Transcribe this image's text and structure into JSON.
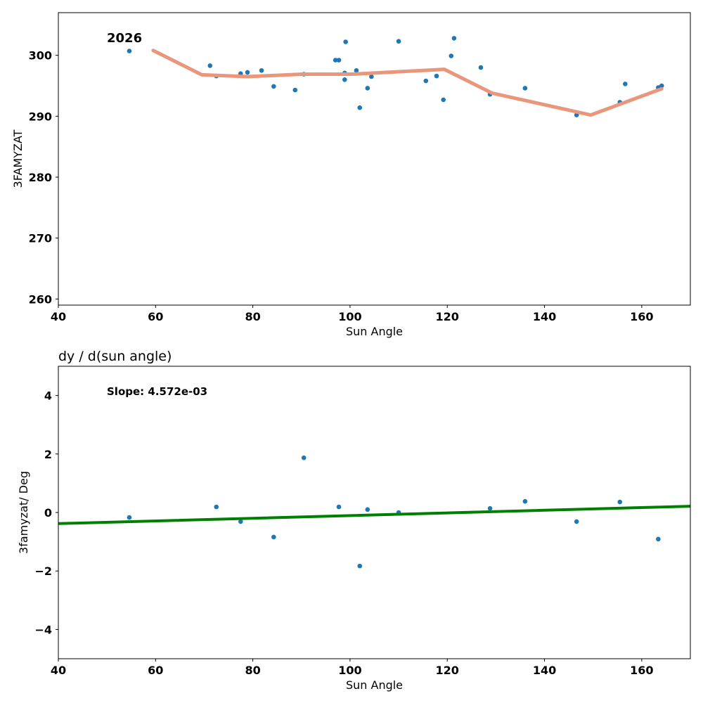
{
  "chart_data": [
    {
      "type": "scatter+line",
      "title": "",
      "annotation": "2026",
      "xlabel": "Sun Angle",
      "ylabel": "3FAMYZAT",
      "xlim": [
        40,
        170
      ],
      "ylim": [
        259,
        307
      ],
      "xticks": [
        40,
        60,
        80,
        100,
        120,
        140,
        160
      ],
      "yticks": [
        260,
        270,
        280,
        290,
        300
      ],
      "points": {
        "x": [
          54.6,
          71.2,
          72.5,
          77.5,
          78.9,
          81.8,
          84.3,
          88.7,
          90.5,
          97.0,
          97.7,
          98.9,
          98.9,
          99.1,
          101.3,
          102.0,
          103.6,
          104.4,
          110.0,
          115.6,
          117.8,
          119.2,
          120.8,
          121.4,
          126.9,
          128.8,
          136.0,
          146.6,
          155.5,
          156.6,
          163.4,
          164.1
        ],
        "y": [
          300.7,
          298.3,
          296.6,
          297.0,
          297.2,
          297.5,
          294.9,
          294.3,
          296.9,
          299.2,
          299.2,
          297.1,
          296.0,
          302.2,
          297.5,
          291.4,
          294.6,
          296.5,
          302.3,
          295.8,
          296.6,
          292.7,
          299.9,
          302.8,
          298.0,
          293.6,
          294.6,
          290.2,
          292.3,
          295.3,
          294.7,
          295.0
        ]
      },
      "line": {
        "x": [
          59.5,
          69.5,
          78.9,
          90.2,
          100.3,
          119.4,
          129.2,
          149.5,
          164.1
        ],
        "y": [
          300.8,
          296.8,
          296.5,
          296.9,
          296.9,
          297.7,
          293.8,
          290.2,
          294.5
        ]
      },
      "colors": {
        "points": "#1f77b4",
        "line": "#e9967a"
      }
    },
    {
      "type": "scatter+line",
      "title": "dy / d(sun angle)",
      "annotation": "Slope: 4.572e-03",
      "xlabel": "Sun Angle",
      "ylabel": "3famyzat/ Deg",
      "xlim": [
        40,
        170
      ],
      "ylim": [
        -5,
        5
      ],
      "xticks": [
        40,
        60,
        80,
        100,
        120,
        140,
        160
      ],
      "yticks": [
        -4,
        -2,
        0,
        2,
        4
      ],
      "points": {
        "x": [
          54.6,
          72.5,
          77.5,
          84.3,
          90.5,
          97.7,
          102.0,
          103.6,
          110.0,
          128.8,
          136.0,
          146.6,
          155.5,
          163.4
        ],
        "y": [
          -0.17,
          0.19,
          -0.31,
          -0.84,
          1.87,
          0.19,
          -1.83,
          0.1,
          0.0,
          0.14,
          0.38,
          -0.31,
          0.36,
          -0.91
        ]
      },
      "line": {
        "x": [
          40,
          170
        ],
        "y": [
          -0.38,
          0.214
        ]
      },
      "colors": {
        "points": "#1f77b4",
        "line": "#008000"
      }
    }
  ]
}
